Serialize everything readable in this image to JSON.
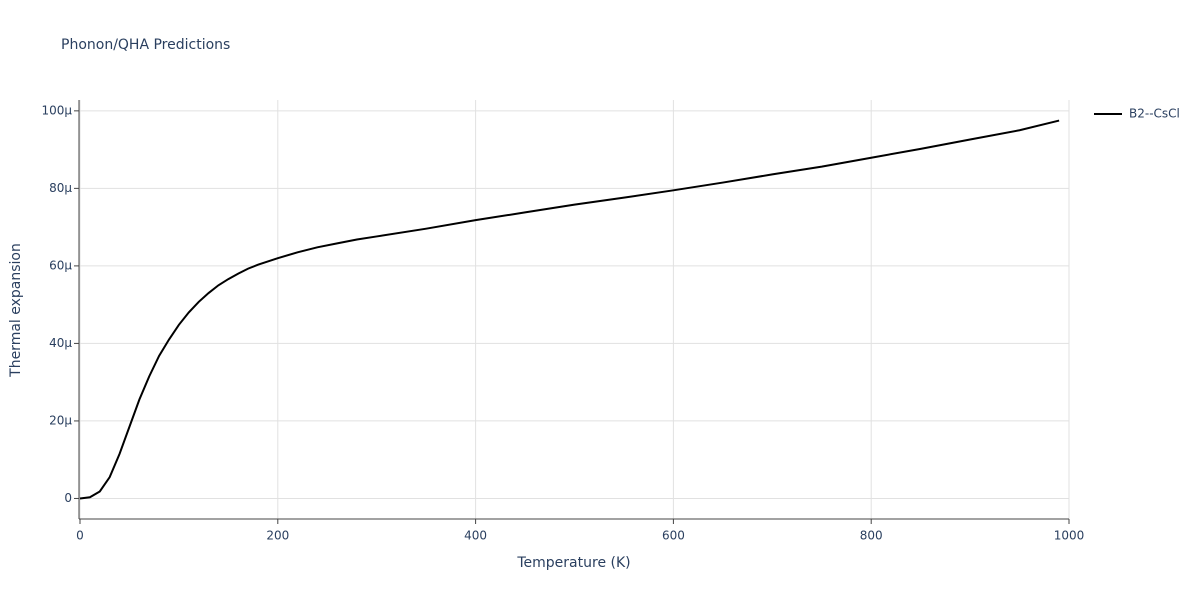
{
  "chart_data": {
    "type": "line",
    "title": "Phonon/QHA Predictions",
    "xlabel": "Temperature (K)",
    "ylabel": "Thermal expansion",
    "x": [
      0,
      10,
      20,
      30,
      40,
      50,
      60,
      70,
      80,
      90,
      100,
      110,
      120,
      130,
      140,
      150,
      160,
      170,
      180,
      200,
      220,
      240,
      260,
      280,
      300,
      350,
      400,
      450,
      500,
      550,
      600,
      650,
      700,
      750,
      800,
      850,
      900,
      950,
      990
    ],
    "series": [
      {
        "name": "B2--CsCl",
        "color": "#000000",
        "values": [
          0,
          3e-07,
          1.8e-06,
          5.5e-06,
          1.15e-05,
          1.85e-05,
          2.55e-05,
          3.15e-05,
          3.68e-05,
          4.1e-05,
          4.48e-05,
          4.8e-05,
          5.07e-05,
          5.3e-05,
          5.5e-05,
          5.66e-05,
          5.8e-05,
          5.93e-05,
          6.03e-05,
          6.2e-05,
          6.35e-05,
          6.48e-05,
          6.58e-05,
          6.68e-05,
          6.76e-05,
          6.96e-05,
          7.18e-05,
          7.38e-05,
          7.58e-05,
          7.76e-05,
          7.95e-05,
          8.15e-05,
          8.36e-05,
          8.56e-05,
          8.79e-05,
          9.02e-05,
          9.26e-05,
          9.5e-05,
          9.75e-05
        ]
      }
    ],
    "xlim": [
      0,
      1000
    ],
    "xticks": [
      0,
      200,
      400,
      600,
      800,
      1000
    ],
    "ylim": [
      -5.3e-06,
      0.0001028
    ],
    "yticks": [
      0,
      {
        "value": 2e-05,
        "label": "20μ"
      },
      {
        "value": 4e-05,
        "label": "40μ"
      },
      {
        "value": 6e-05,
        "label": "60μ"
      },
      {
        "value": 8e-05,
        "label": "80μ"
      },
      {
        "value": 0.0001,
        "label": "100μ"
      }
    ],
    "grid": true,
    "legend": "right"
  }
}
